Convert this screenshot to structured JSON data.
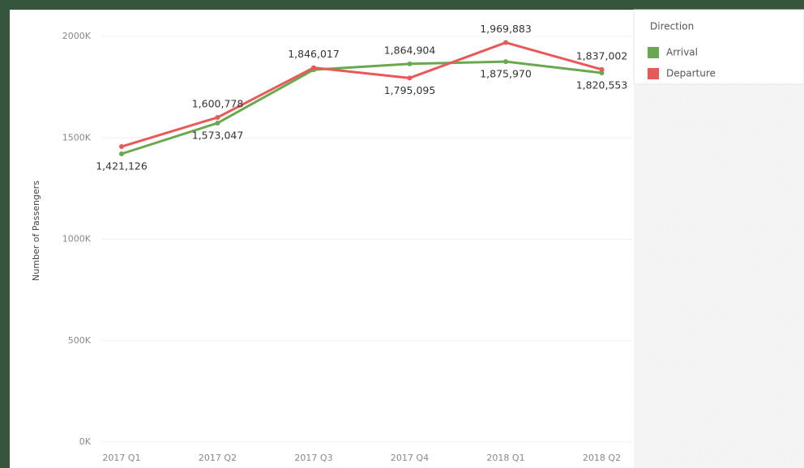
{
  "chart_data": {
    "type": "line",
    "legend_title": "Direction",
    "y_label": "Number of Passengers",
    "categories": [
      "2017 Q1",
      "2017 Q2",
      "2017 Q3",
      "2017 Q4",
      "2018 Q1",
      "2018 Q2"
    ],
    "series": [
      {
        "name": "Arrival",
        "color": "#6aa84f",
        "values": [
          1421126,
          1573047,
          1836000,
          1864904,
          1875970,
          1820553
        ],
        "value_labels": [
          "1,421,126",
          "1,573,047",
          null,
          "1,864,904",
          "1,875,970",
          "1,820,553"
        ]
      },
      {
        "name": "Departure",
        "color": "#e85a5a",
        "values": [
          1457000,
          1600778,
          1846017,
          1795095,
          1969883,
          1837002
        ],
        "value_labels": [
          null,
          "1,600,778",
          "1,846,017",
          "1,795,095",
          "1,969,883",
          "1,837,002"
        ]
      }
    ],
    "ylim": [
      0,
      2000000
    ],
    "yticks": [
      {
        "value": 0,
        "label": "0K"
      },
      {
        "value": 500000,
        "label": "500K"
      },
      {
        "value": 1000000,
        "label": "1000K"
      },
      {
        "value": 1500000,
        "label": "1500K"
      },
      {
        "value": 2000000,
        "label": "2000K"
      }
    ],
    "grid": true
  }
}
